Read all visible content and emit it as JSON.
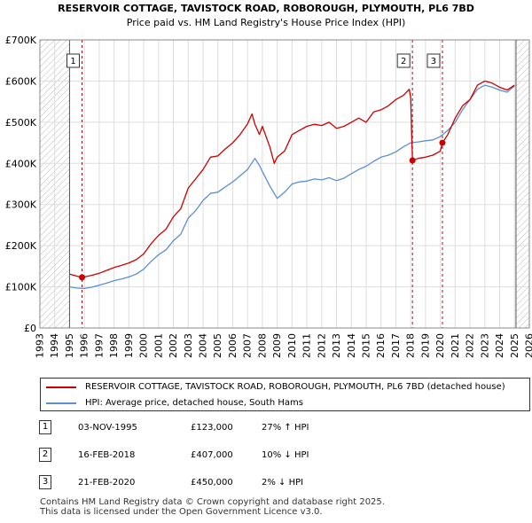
{
  "chart_data": {
    "type": "line",
    "title": "RESERVOIR COTTAGE, TAVISTOCK ROAD, ROBOROUGH, PLYMOUTH, PL6 7BD",
    "subtitle": "Price paid vs. HM Land Registry's House Price Index (HPI)",
    "xlim": [
      1993,
      2026
    ],
    "ylim": [
      0,
      700000
    ],
    "y_ticks": [
      0,
      100000,
      200000,
      300000,
      400000,
      500000,
      600000,
      700000
    ],
    "y_tick_labels": [
      "£0",
      "£100K",
      "£200K",
      "£300K",
      "£400K",
      "£500K",
      "£600K",
      "£700K"
    ],
    "x_ticks": [
      1993,
      1994,
      1995,
      1996,
      1997,
      1998,
      1999,
      2000,
      2001,
      2002,
      2003,
      2004,
      2005,
      2006,
      2007,
      2008,
      2009,
      2010,
      2011,
      2012,
      2013,
      2014,
      2015,
      2016,
      2017,
      2018,
      2019,
      2020,
      2021,
      2022,
      2023,
      2024,
      2025,
      2026
    ],
    "x_tick_labels": [
      "1993",
      "1994",
      "1995",
      "1996",
      "1997",
      "1998",
      "1999",
      "2000",
      "2001",
      "2002",
      "2003",
      "2004",
      "2005",
      "2006",
      "2007",
      "2008",
      "2009",
      "2010",
      "2011",
      "2012",
      "2013",
      "2014",
      "2015",
      "2016",
      "2017",
      "2018",
      "2019",
      "2020",
      "2021",
      "2022",
      "2023",
      "2024",
      "2025",
      "2026"
    ],
    "hatched_ranges": [
      [
        1993,
        1995.0
      ],
      [
        2025.1,
        2026
      ]
    ],
    "series": [
      {
        "name": "RESERVOIR COTTAGE, TAVISTOCK ROAD, ROBOROUGH, PLYMOUTH, PL6 7BD (detached house)",
        "color": "#cc0000",
        "x": [
          1995.0,
          1995.5,
          1995.84,
          1996.5,
          1997.0,
          1997.5,
          1998.0,
          1998.5,
          1999.0,
          1999.5,
          2000.0,
          2000.5,
          2001.0,
          2001.5,
          2002.0,
          2002.5,
          2003.0,
          2003.5,
          2004.0,
          2004.5,
          2005.0,
          2005.5,
          2006.0,
          2006.5,
          2007.0,
          2007.3,
          2007.5,
          2007.8,
          2008.0,
          2008.5,
          2008.8,
          2009.0,
          2009.5,
          2010.0,
          2010.5,
          2011.0,
          2011.5,
          2012.0,
          2012.5,
          2013.0,
          2013.5,
          2014.0,
          2014.5,
          2015.0,
          2015.5,
          2016.0,
          2016.5,
          2017.0,
          2017.5,
          2017.9,
          2018.0,
          2018.12,
          2018.5,
          2019.0,
          2019.5,
          2020.0,
          2020.14,
          2020.5,
          2021.0,
          2021.5,
          2022.0,
          2022.5,
          2023.0,
          2023.5,
          2024.0,
          2024.5,
          2025.0
        ],
        "values": [
          131000,
          126000,
          123000,
          128000,
          133000,
          140000,
          147000,
          152000,
          158000,
          166000,
          180000,
          205000,
          225000,
          240000,
          270000,
          290000,
          340000,
          362000,
          385000,
          415000,
          418000,
          435000,
          450000,
          470000,
          496000,
          520000,
          495000,
          470000,
          490000,
          440000,
          400000,
          415000,
          430000,
          470000,
          480000,
          490000,
          495000,
          492000,
          500000,
          485000,
          490000,
          500000,
          510000,
          500000,
          525000,
          530000,
          540000,
          555000,
          565000,
          580000,
          560000,
          407000,
          412000,
          415000,
          420000,
          430000,
          450000,
          470000,
          510000,
          540000,
          555000,
          590000,
          600000,
          595000,
          585000,
          578000,
          590000
        ]
      },
      {
        "name": "HPI: Average price, detached house, South Hams",
        "color": "#5b8fd0",
        "x": [
          1995.0,
          1995.5,
          1996.0,
          1996.5,
          1997.0,
          1997.5,
          1998.0,
          1998.5,
          1999.0,
          1999.5,
          2000.0,
          2000.5,
          2001.0,
          2001.5,
          2002.0,
          2002.5,
          2003.0,
          2003.5,
          2004.0,
          2004.5,
          2005.0,
          2005.5,
          2006.0,
          2006.5,
          2007.0,
          2007.5,
          2007.8,
          2008.0,
          2008.5,
          2009.0,
          2009.5,
          2010.0,
          2010.5,
          2011.0,
          2011.5,
          2012.0,
          2012.5,
          2013.0,
          2013.5,
          2014.0,
          2014.5,
          2015.0,
          2015.5,
          2016.0,
          2016.5,
          2017.0,
          2017.5,
          2018.0,
          2018.5,
          2019.0,
          2019.5,
          2020.0,
          2020.5,
          2021.0,
          2021.5,
          2022.0,
          2022.5,
          2023.0,
          2023.5,
          2024.0,
          2024.5,
          2025.0
        ],
        "values": [
          100000,
          97000,
          96000,
          99000,
          104000,
          109000,
          115000,
          119000,
          124000,
          131000,
          143000,
          162000,
          178000,
          190000,
          212000,
          228000,
          267000,
          285000,
          310000,
          327000,
          330000,
          343000,
          355000,
          370000,
          385000,
          412000,
          395000,
          380000,
          345000,
          315000,
          330000,
          350000,
          355000,
          357000,
          362000,
          360000,
          365000,
          358000,
          364000,
          375000,
          385000,
          393000,
          405000,
          415000,
          420000,
          428000,
          440000,
          450000,
          452000,
          455000,
          457000,
          465000,
          480000,
          500000,
          530000,
          555000,
          580000,
          590000,
          585000,
          578000,
          573000,
          588000
        ]
      }
    ],
    "transactions": [
      {
        "id": "1",
        "x": 1995.84,
        "price": 123000
      },
      {
        "id": "2",
        "x": 2018.12,
        "price": 407000
      },
      {
        "id": "3",
        "x": 2020.14,
        "price": 450000
      }
    ]
  },
  "legend": {
    "property_label": "RESERVOIR COTTAGE, TAVISTOCK ROAD, ROBOROUGH, PLYMOUTH, PL6 7BD (detached house)",
    "hpi_label": "HPI: Average price, detached house, South Hams"
  },
  "transactions_table": [
    {
      "id": "1",
      "date": "03-NOV-1995",
      "price": "£123,000",
      "hpi": "27% ↑ HPI"
    },
    {
      "id": "2",
      "date": "16-FEB-2018",
      "price": "£407,000",
      "hpi": "10% ↓ HPI"
    },
    {
      "id": "3",
      "date": "21-FEB-2020",
      "price": "£450,000",
      "hpi": "2% ↓ HPI"
    }
  ],
  "footer": {
    "line1": "Contains HM Land Registry data © Crown copyright and database right 2025.",
    "line2": "This data is licensed under the Open Government Licence v3.0."
  }
}
